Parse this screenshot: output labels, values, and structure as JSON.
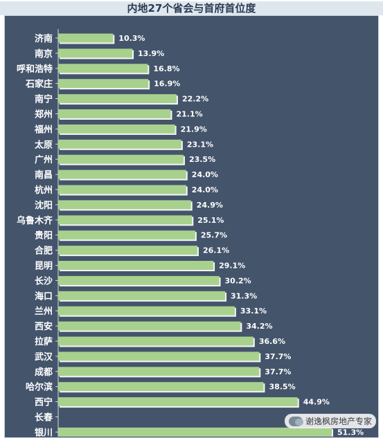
{
  "chart_data": {
    "type": "bar",
    "orientation": "horizontal",
    "title": "内地27个省会与首府首位度",
    "categories": [
      "济南",
      "南京",
      "呼和浩特",
      "石家庄",
      "南宁",
      "郑州",
      "福州",
      "太原",
      "广州",
      "南昌",
      "杭州",
      "沈阳",
      "乌鲁木齐",
      "贵阳",
      "合肥",
      "昆明",
      "长沙",
      "海口",
      "兰州",
      "西安",
      "拉萨",
      "武汉",
      "成都",
      "哈尔滨",
      "西宁",
      "长春",
      "银川"
    ],
    "values": [
      10.3,
      13.9,
      16.8,
      16.9,
      22.2,
      21.1,
      21.9,
      23.1,
      23.5,
      24.0,
      24.0,
      24.9,
      25.1,
      25.7,
      26.1,
      29.1,
      30.2,
      31.3,
      33.1,
      34.2,
      36.6,
      37.7,
      37.7,
      38.5,
      44.9,
      null,
      51.3
    ],
    "value_labels": [
      "10.3%",
      "13.9%",
      "16.8%",
      "16.9%",
      "22.2%",
      "21.1%",
      "21.9%",
      "23.1%",
      "23.5%",
      "24.0%",
      "24.0%",
      "24.9%",
      "25.1%",
      "25.7%",
      "26.1%",
      "29.1%",
      "30.2%",
      "31.3%",
      "33.1%",
      "34.2%",
      "36.6%",
      "37.7%",
      "37.7%",
      "38.5%",
      "44.9%",
      "",
      "51.3%"
    ],
    "xlim": [
      0,
      60
    ],
    "grid": false,
    "legend": "none",
    "colors": {
      "bar": "#a9d18e",
      "background": "#44546b",
      "title_bg": "#dfe7ee",
      "text": "#ffffff"
    }
  },
  "watermark": {
    "text": "谢逸枫房地产专家"
  }
}
